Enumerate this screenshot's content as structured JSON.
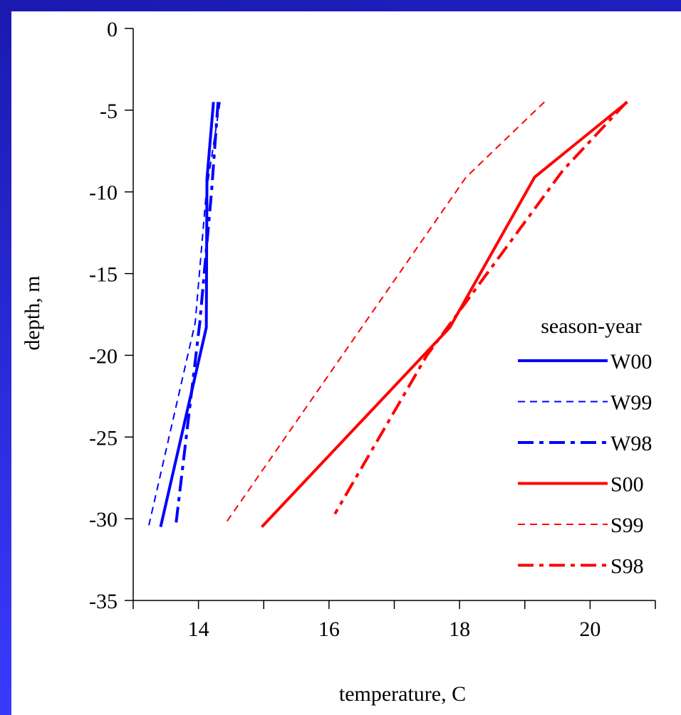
{
  "chart_data": {
    "type": "line",
    "xlabel": "temperature, C",
    "ylabel": "depth, m",
    "legend_title": "season-year",
    "legend": "right",
    "xlim": [
      13,
      21
    ],
    "xticks": [
      14,
      16,
      18,
      20
    ],
    "xminor_ticks": [
      13,
      15,
      17,
      19,
      21
    ],
    "ylim": [
      -35,
      0
    ],
    "yticks": [
      0,
      -5,
      -10,
      -15,
      -20,
      -25,
      -30,
      -35
    ],
    "series": [
      {
        "name": "W00",
        "color": "#0000ff",
        "style": "solid",
        "linewidth": 4,
        "x": [
          14.23,
          14.13,
          14.12,
          13.42
        ],
        "values": [
          -4.5,
          -9.2,
          -18.3,
          -30.5
        ]
      },
      {
        "name": "W99",
        "color": "#0000ff",
        "style": "dash",
        "linewidth": 2,
        "x": [
          14.33,
          14.12,
          13.95,
          13.24
        ],
        "values": [
          -4.5,
          -10,
          -18,
          -30.4
        ]
      },
      {
        "name": "W98",
        "color": "#0000ff",
        "style": "dashdot",
        "linewidth": 4,
        "x": [
          14.3,
          14.2,
          14.02,
          13.65
        ],
        "values": [
          -4.5,
          -10,
          -18,
          -30.5
        ]
      },
      {
        "name": "S00",
        "color": "#ff0000",
        "style": "solid",
        "linewidth": 4,
        "x": [
          20.57,
          19.15,
          17.85,
          14.97
        ],
        "values": [
          -4.5,
          -9.1,
          -18.3,
          -30.5
        ]
      },
      {
        "name": "S99",
        "color": "#ff0000",
        "style": "dash",
        "linewidth": 2,
        "x": [
          19.3,
          18.1,
          14.43
        ],
        "values": [
          -4.5,
          -9.1,
          -30.2
        ]
      },
      {
        "name": "S98",
        "color": "#ff0000",
        "style": "dashdot",
        "linewidth": 4,
        "x": [
          20.56,
          19.58,
          17.5,
          16.09
        ],
        "values": [
          -4.5,
          -8.7,
          -20,
          -29.7
        ]
      }
    ]
  }
}
